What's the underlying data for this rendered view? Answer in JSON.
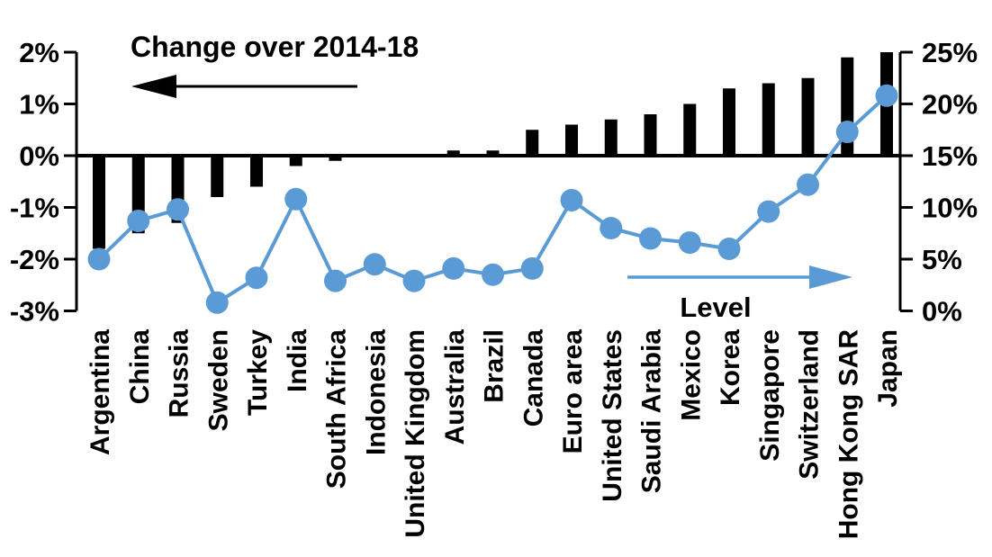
{
  "chart_data": {
    "type": "bar",
    "subtype": "combo-bar-line-dual-axis",
    "categories": [
      "Argentina",
      "China",
      "Russia",
      "Sweden",
      "Turkey",
      "India",
      "South Africa",
      "Indonesia",
      "United Kingdom",
      "Australia",
      "Brazil",
      "Canada",
      "Euro area",
      "United States",
      "Saudi Arabia",
      "Mexico",
      "Korea",
      "Singapore",
      "Switzerland",
      "Hong Kong SAR",
      "Japan"
    ],
    "series": [
      {
        "name": "Change over 2014-18",
        "type": "bar",
        "axis": "left",
        "color": "#000000",
        "values": [
          -1.8,
          -1.5,
          -1.3,
          -0.8,
          -0.6,
          -0.2,
          -0.1,
          0.0,
          0.0,
          0.1,
          0.1,
          0.5,
          0.6,
          0.7,
          0.8,
          1.0,
          1.3,
          1.4,
          1.5,
          1.9,
          2.0
        ]
      },
      {
        "name": "Level",
        "type": "line",
        "axis": "right",
        "color": "#5B9BD5",
        "values": [
          5.0,
          8.7,
          9.8,
          0.8,
          3.2,
          10.8,
          2.9,
          4.5,
          2.9,
          4.1,
          3.5,
          4.1,
          10.7,
          8.0,
          7.0,
          6.6,
          6.0,
          9.6,
          12.2,
          17.3,
          20.8
        ]
      }
    ],
    "left_axis": {
      "min": -3,
      "max": 2,
      "tick_labels": [
        "2%",
        "1%",
        "0%",
        "-1%",
        "-2%",
        "-3%"
      ],
      "tick_values": [
        2,
        1,
        0,
        -1,
        -2,
        -3
      ]
    },
    "right_axis": {
      "min": 0,
      "max": 25,
      "tick_labels": [
        "25%",
        "20%",
        "15%",
        "10%",
        "5%",
        "0%"
      ],
      "tick_values": [
        25,
        20,
        15,
        10,
        5,
        0
      ]
    },
    "annotations": {
      "bar_series_label": "Change over 2014-18",
      "bar_arrow_direction": "left",
      "line_series_label": "Level",
      "line_arrow_direction": "right"
    },
    "grid": false,
    "legend_position": "in-plot-annotations",
    "colors": {
      "bar": "#000000",
      "line": "#5B9BD5",
      "axis": "#000000",
      "background": "#FFFFFF"
    }
  }
}
